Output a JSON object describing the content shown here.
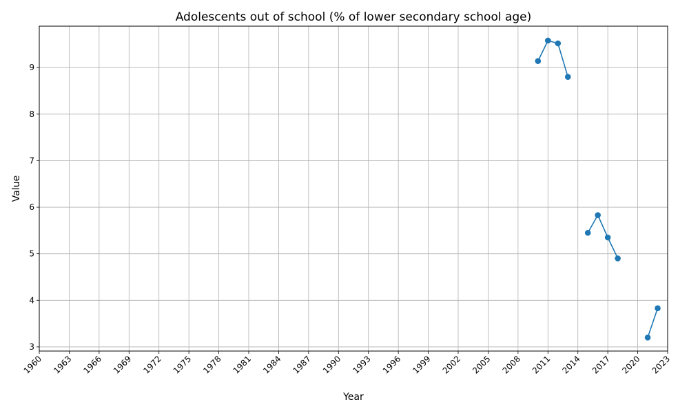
{
  "chart_data": {
    "type": "line",
    "title": "Adolescents out of school (% of lower secondary school age)",
    "xlabel": "Year",
    "ylabel": "Value",
    "xlim": [
      1960,
      2023
    ],
    "ylim": [
      2.91,
      9.89
    ],
    "x_ticks": [
      1960,
      1963,
      1966,
      1969,
      1972,
      1975,
      1978,
      1981,
      1984,
      1987,
      1990,
      1993,
      1996,
      1999,
      2002,
      2005,
      2008,
      2011,
      2014,
      2017,
      2020,
      2023
    ],
    "y_ticks": [
      3,
      4,
      5,
      6,
      7,
      8,
      9
    ],
    "grid": true,
    "color": "#1f77b4",
    "series": [
      {
        "x": [
          2010,
          2011,
          2012,
          2013,
          2014,
          2015,
          2016,
          2017,
          2018,
          2019,
          2020,
          2021,
          2022
        ],
        "y": [
          9.14,
          9.58,
          9.52,
          8.8,
          null,
          5.45,
          5.83,
          5.35,
          4.9,
          null,
          null,
          3.2,
          3.83
        ]
      }
    ]
  }
}
